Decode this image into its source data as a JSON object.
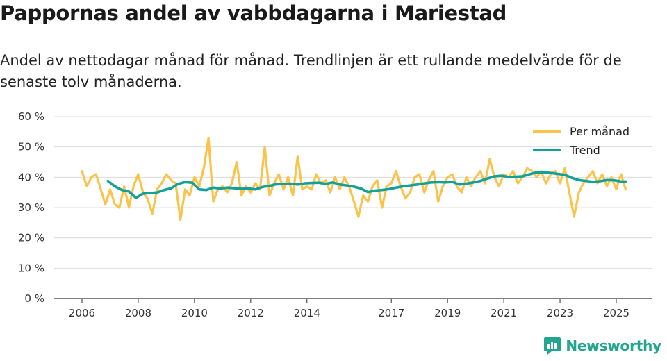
{
  "header": {
    "title": "Pappornas andel av vabbdagarna i Mariestad",
    "subtitle": "Andel av nettodagar månad för månad. Trendlinjen är ett rullande medelvärde för de senaste tolv månaderna."
  },
  "brand": {
    "name": "Newsworthy",
    "icon": "newsworthy-logo-icon",
    "color": "#23a590"
  },
  "chart_data": {
    "type": "line",
    "title": "Pappornas andel av vabbdagarna i Mariestad",
    "xlabel": "",
    "ylabel": "",
    "ylim": [
      0,
      60
    ],
    "xlim": [
      2006.0,
      2025.8
    ],
    "grid": true,
    "legend_position": "top-right",
    "y_ticks": [
      0,
      10,
      20,
      30,
      40,
      50,
      60
    ],
    "y_tick_labels": [
      "0 %",
      "10 %",
      "20 %",
      "30 %",
      "40 %",
      "50 %",
      "60 %"
    ],
    "x_ticks": [
      2006,
      2008,
      2010,
      2012,
      2014,
      2017,
      2019,
      2021,
      2023,
      2025
    ],
    "x_tick_labels": [
      "2006",
      "2008",
      "2010",
      "2012",
      "2014",
      "2017",
      "2019",
      "2021",
      "2023",
      "2025"
    ],
    "series": [
      {
        "name": "Per månad",
        "color": "#fcc34a",
        "x": [
          2006.0,
          2006.17,
          2006.33,
          2006.5,
          2006.67,
          2006.83,
          2007.0,
          2007.17,
          2007.33,
          2007.5,
          2007.67,
          2007.83,
          2008.0,
          2008.17,
          2008.33,
          2008.5,
          2008.67,
          2008.83,
          2009.0,
          2009.17,
          2009.33,
          2009.5,
          2009.67,
          2009.83,
          2010.0,
          2010.17,
          2010.33,
          2010.5,
          2010.67,
          2010.83,
          2011.0,
          2011.17,
          2011.33,
          2011.5,
          2011.67,
          2011.83,
          2012.0,
          2012.17,
          2012.33,
          2012.5,
          2012.67,
          2012.83,
          2013.0,
          2013.17,
          2013.33,
          2013.5,
          2013.67,
          2013.83,
          2014.0,
          2014.17,
          2014.33,
          2014.5,
          2014.67,
          2014.83,
          2015.0,
          2015.17,
          2015.33,
          2015.5,
          2015.67,
          2015.83,
          2016.0,
          2016.17,
          2016.33,
          2016.5,
          2016.67,
          2016.83,
          2017.0,
          2017.17,
          2017.33,
          2017.5,
          2017.67,
          2017.83,
          2018.0,
          2018.17,
          2018.33,
          2018.5,
          2018.67,
          2018.83,
          2019.0,
          2019.17,
          2019.33,
          2019.5,
          2019.67,
          2019.83,
          2020.0,
          2020.17,
          2020.33,
          2020.5,
          2020.67,
          2020.83,
          2021.0,
          2021.17,
          2021.33,
          2021.5,
          2021.67,
          2021.83,
          2022.0,
          2022.17,
          2022.33,
          2022.5,
          2022.67,
          2022.83,
          2023.0,
          2023.17,
          2023.33,
          2023.5,
          2023.67,
          2023.83,
          2024.0,
          2024.17,
          2024.33,
          2024.5,
          2024.67,
          2024.83,
          2025.0,
          2025.17,
          2025.33
        ],
        "values": [
          42,
          37,
          40,
          41,
          36,
          31,
          36,
          31,
          30,
          37,
          30,
          37,
          41,
          35,
          33,
          28,
          36,
          38,
          41,
          39,
          38,
          26,
          36,
          34,
          40,
          37,
          43,
          53,
          32,
          36,
          37,
          35,
          38,
          45,
          34,
          37,
          35,
          38,
          36,
          50,
          34,
          38,
          41,
          36,
          40,
          34,
          47,
          36,
          37,
          36,
          41,
          38,
          39,
          35,
          40,
          36,
          40,
          37,
          32,
          27,
          34,
          32,
          37,
          39,
          30,
          37,
          38,
          42,
          37,
          33,
          35,
          40,
          41,
          35,
          39,
          42,
          32,
          37,
          40,
          41,
          37,
          35,
          40,
          37,
          40,
          42,
          38,
          46,
          40,
          37,
          41,
          40,
          42,
          38,
          40,
          43,
          42,
          40,
          42,
          38,
          41,
          42,
          38,
          43,
          35,
          27,
          35,
          38,
          40,
          42,
          38,
          41,
          37,
          40,
          36,
          41,
          36
        ]
      },
      {
        "name": "Trend",
        "color": "#12a198",
        "x": [
          2006.92,
          2007.17,
          2007.42,
          2007.67,
          2007.92,
          2008.17,
          2008.42,
          2008.67,
          2008.92,
          2009.17,
          2009.42,
          2009.67,
          2009.92,
          2010.17,
          2010.42,
          2010.67,
          2010.92,
          2011.17,
          2011.42,
          2011.67,
          2011.92,
          2012.17,
          2012.42,
          2012.67,
          2012.92,
          2013.17,
          2013.42,
          2013.67,
          2013.92,
          2014.17,
          2014.42,
          2014.67,
          2014.92,
          2015.17,
          2015.42,
          2015.67,
          2015.92,
          2016.17,
          2016.42,
          2016.67,
          2016.92,
          2017.17,
          2017.42,
          2017.67,
          2017.92,
          2018.17,
          2018.42,
          2018.67,
          2018.92,
          2019.17,
          2019.42,
          2019.67,
          2019.92,
          2020.17,
          2020.42,
          2020.67,
          2020.92,
          2021.17,
          2021.42,
          2021.67,
          2021.92,
          2022.17,
          2022.42,
          2022.67,
          2022.92,
          2023.17,
          2023.42,
          2023.67,
          2023.92,
          2024.17,
          2024.42,
          2024.67,
          2024.92,
          2025.17,
          2025.33
        ],
        "values": [
          38.8,
          37.0,
          35.8,
          35.3,
          33.2,
          34.6,
          34.8,
          35.0,
          35.8,
          36.4,
          37.8,
          38.4,
          38.2,
          36.0,
          35.8,
          36.6,
          36.3,
          36.6,
          36.4,
          36.2,
          36.3,
          36.0,
          36.8,
          37.2,
          37.7,
          37.8,
          37.9,
          37.6,
          38.0,
          38.1,
          38.2,
          37.8,
          38.3,
          37.6,
          37.3,
          36.9,
          36.3,
          35.1,
          35.6,
          35.8,
          36.1,
          36.6,
          37.0,
          37.3,
          37.6,
          38.0,
          38.3,
          38.4,
          38.3,
          38.5,
          37.6,
          37.9,
          38.3,
          38.8,
          39.6,
          40.3,
          40.5,
          40.1,
          40.2,
          40.3,
          41.0,
          41.6,
          41.6,
          41.4,
          41.1,
          40.8,
          39.8,
          39.1,
          38.8,
          38.5,
          38.7,
          39.1,
          39.0,
          38.6,
          38.6
        ]
      }
    ]
  }
}
